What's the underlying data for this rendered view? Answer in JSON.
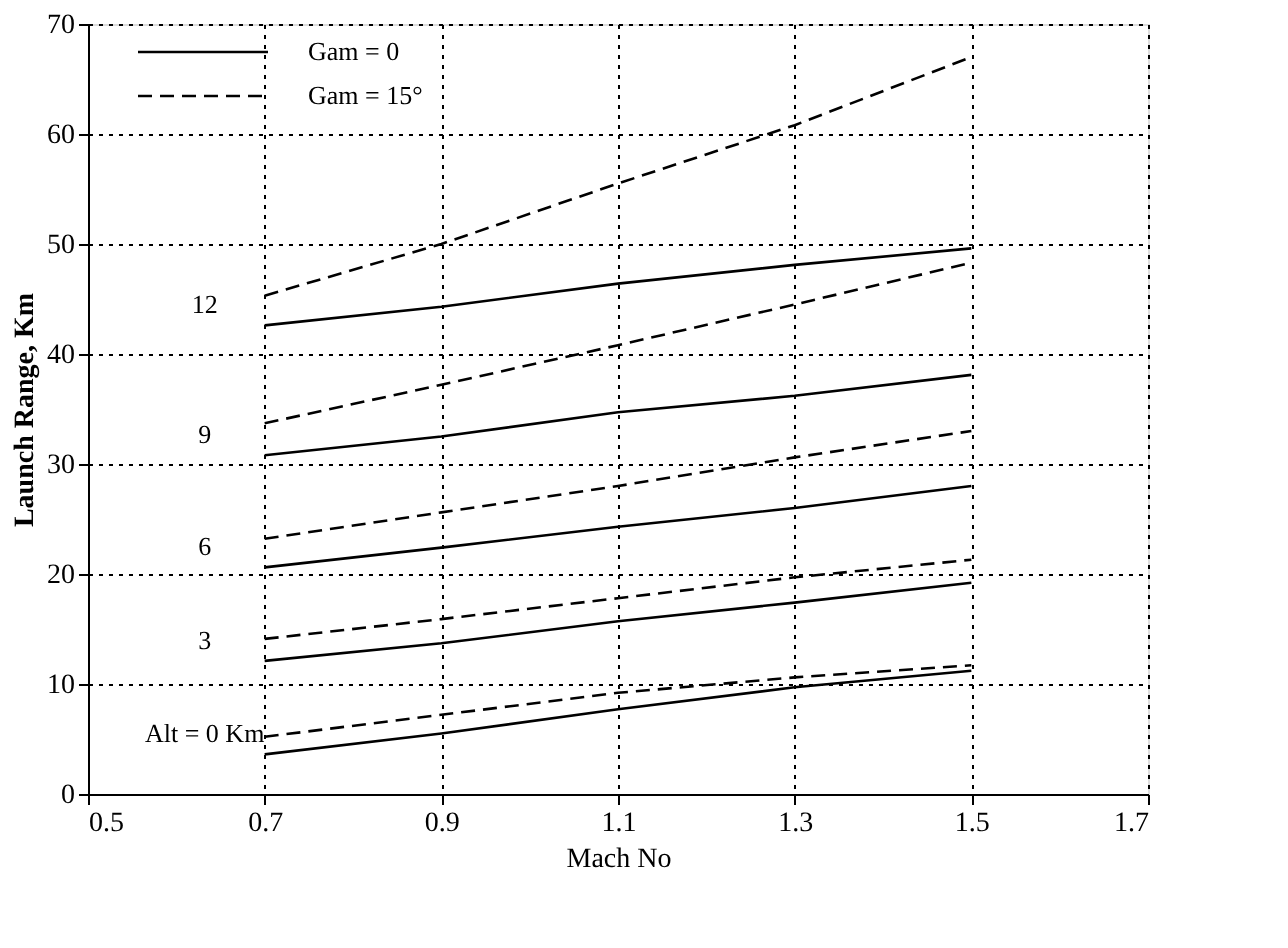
{
  "chart_data": {
    "type": "line",
    "xlabel": "Mach No",
    "ylabel": "Launch Range, Km",
    "x": [
      0.7,
      0.9,
      1.1,
      1.3,
      1.5
    ],
    "series": [
      {
        "name": "Gam = 0",
        "color": "#000000",
        "line_style": "solid",
        "values": [
          3.6,
          5.5,
          7.7,
          9.7,
          11.2
        ]
      },
      {
        "name": "Gam = 15°",
        "color": "#000000",
        "line_style": "dashed",
        "values": [
          5.2,
          7.2,
          9.2,
          10.6,
          11.7
        ]
      },
      {
        "color": "#000000",
        "line_style": "solid",
        "values": [
          12.1,
          13.7,
          15.7,
          17.4,
          19.2
        ]
      },
      {
        "color": "#000000",
        "line_style": "dashed",
        "values": [
          14.1,
          15.9,
          17.8,
          19.7,
          21.3
        ]
      },
      {
        "color": "#000000",
        "line_style": "solid",
        "values": [
          20.6,
          22.4,
          24.3,
          26.0,
          28.0
        ]
      },
      {
        "color": "#000000",
        "line_style": "dashed",
        "values": [
          23.2,
          25.6,
          28.0,
          30.6,
          33.0
        ]
      },
      {
        "color": "#000000",
        "line_style": "solid",
        "values": [
          30.8,
          32.5,
          34.7,
          36.2,
          38.1
        ]
      },
      {
        "color": "#000000",
        "line_style": "dashed",
        "values": [
          33.7,
          37.2,
          40.8,
          44.5,
          48.3
        ]
      },
      {
        "color": "#000000",
        "line_style": "solid",
        "values": [
          42.6,
          44.3,
          46.4,
          48.1,
          49.6
        ]
      },
      {
        "color": "#000000",
        "line_style": "dashed",
        "values": [
          45.3,
          50.0,
          55.5,
          60.8,
          67.0
        ]
      }
    ],
    "annotations": [
      "12",
      "9",
      "6",
      "3",
      "Alt = 0 Km"
    ],
    "xlim": [
      0.5,
      1.7
    ],
    "xticks": [
      0.5,
      0.7,
      0.9,
      1.1,
      1.3,
      1.5,
      1.7
    ],
    "ylim": [
      0,
      70
    ],
    "yticks": [
      0,
      10,
      20,
      30,
      40,
      50,
      60,
      70
    ],
    "grid": true,
    "legend": "top left"
  }
}
